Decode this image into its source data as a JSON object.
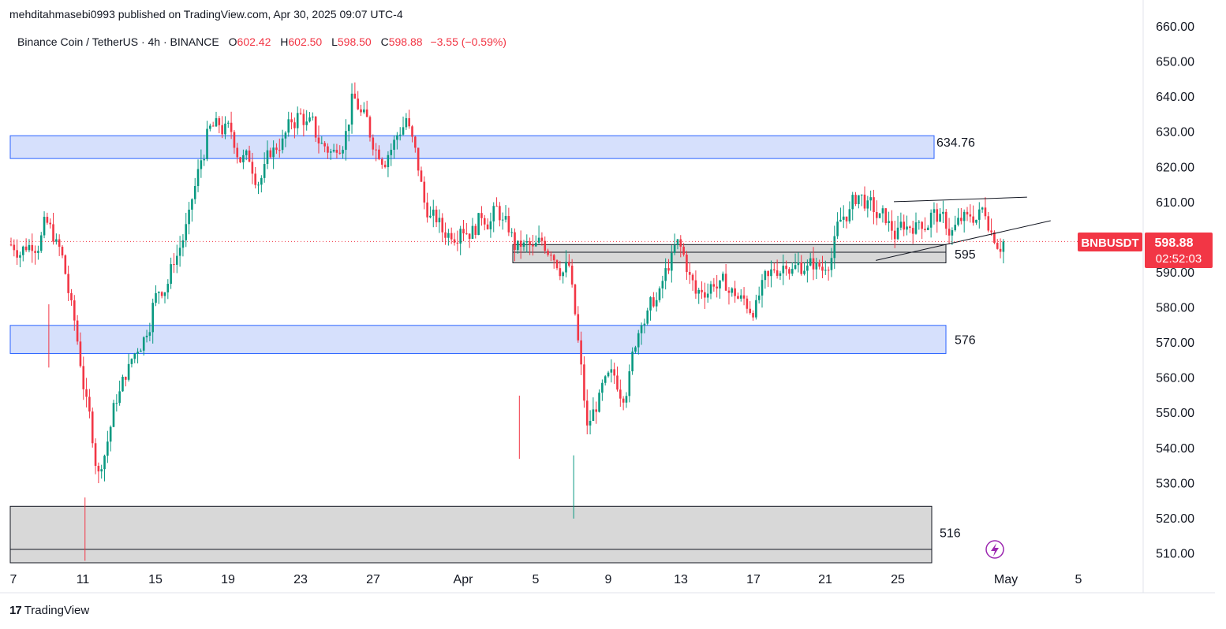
{
  "header": {
    "published": "mehditahmasebi0993 published on TradingView.com, Apr 30, 2025 09:07 UTC-4"
  },
  "legend": {
    "symbol": "Binance Coin / TetherUS · 4h · BINANCE",
    "o_label": "O",
    "o_value": "602.42",
    "h_label": "H",
    "h_value": "602.50",
    "l_label": "L",
    "l_value": "598.50",
    "c_label": "C",
    "c_value": "598.88",
    "change": "−3.55 (−0.59%)"
  },
  "colors": {
    "up": "#089981",
    "down": "#f23645",
    "zone_blue_fill": "#d1ddfc",
    "zone_blue_stroke": "#2962ff",
    "zone_gray_fill": "#d6d6d6",
    "zone_gray_stroke": "#131722",
    "price_tag": "#f23645"
  },
  "price_tag": {
    "symbol": "BNBUSDT",
    "price": "598.88",
    "countdown": "02:52:03"
  },
  "footer": {
    "brand": "TradingView"
  },
  "chart_data": {
    "type": "candlestick",
    "title": "",
    "ylim": [
      507,
      662
    ],
    "y_ticks": [
      "660.00",
      "650.00",
      "640.00",
      "630.00",
      "620.00",
      "610.00",
      "600.00",
      "590.00",
      "580.00",
      "570.00",
      "560.00",
      "550.00",
      "540.00",
      "530.00",
      "520.00",
      "510.00"
    ],
    "x_ticks": [
      "7",
      "11",
      "15",
      "19",
      "23",
      "27",
      "Apr",
      "5",
      "9",
      "13",
      "17",
      "21",
      "25",
      "May",
      "5"
    ],
    "current_price": 598.88,
    "zones": [
      {
        "label": "634.76",
        "top": 629.0,
        "bottom": 622.5,
        "style": "blue"
      },
      {
        "label": "595",
        "top": 598.0,
        "bottom": 592.8,
        "style": "gray"
      },
      {
        "label": "576",
        "top": 575.0,
        "bottom": 567.0,
        "style": "blue"
      },
      {
        "label": "516",
        "top": 523.5,
        "bottom": 499.0,
        "style": "gray"
      }
    ],
    "trendlines": [
      {
        "from": [
          "Apr 25",
          610.2
        ],
        "to": [
          "Apr 29",
          611.5
        ]
      },
      {
        "from": [
          "Apr 24",
          593.5
        ],
        "to": [
          "Apr 30",
          604.8
        ]
      }
    ],
    "series": [
      {
        "date": "Mar 7",
        "close": 598
      },
      {
        "date": "Mar 8",
        "close": 603
      },
      {
        "date": "Mar 9",
        "close": 594
      },
      {
        "date": "Mar 10",
        "close": 565
      },
      {
        "date": "Mar 11",
        "close": 532
      },
      {
        "date": "Mar 12",
        "close": 555
      },
      {
        "date": "Mar 13",
        "close": 567
      },
      {
        "date": "Mar 14",
        "close": 580
      },
      {
        "date": "Mar 15",
        "close": 590
      },
      {
        "date": "Mar 16",
        "close": 605
      },
      {
        "date": "Mar 17",
        "close": 628
      },
      {
        "date": "Mar 18",
        "close": 630
      },
      {
        "date": "Mar 19",
        "close": 622
      },
      {
        "date": "Mar 20",
        "close": 617
      },
      {
        "date": "Mar 21",
        "close": 627
      },
      {
        "date": "Mar 22",
        "close": 634
      },
      {
        "date": "Mar 23",
        "close": 630
      },
      {
        "date": "Mar 24",
        "close": 624
      },
      {
        "date": "Mar 25",
        "close": 638
      },
      {
        "date": "Mar 26",
        "close": 630
      },
      {
        "date": "Mar 27",
        "close": 624
      },
      {
        "date": "Mar 28",
        "close": 634
      },
      {
        "date": "Mar 29",
        "close": 610
      },
      {
        "date": "Mar 30",
        "close": 602
      },
      {
        "date": "Mar 31",
        "close": 604
      },
      {
        "date": "Apr 1",
        "close": 604
      },
      {
        "date": "Apr 2",
        "close": 608
      },
      {
        "date": "Apr 3",
        "close": 598
      },
      {
        "date": "Apr 4",
        "close": 596
      },
      {
        "date": "Apr 5",
        "close": 597
      },
      {
        "date": "Apr 6",
        "close": 592
      },
      {
        "date": "Apr 7",
        "close": 545
      },
      {
        "date": "Apr 8",
        "close": 558
      },
      {
        "date": "Apr 9",
        "close": 556
      },
      {
        "date": "Apr 10",
        "close": 578
      },
      {
        "date": "Apr 11",
        "close": 583
      },
      {
        "date": "Apr 12",
        "close": 598
      },
      {
        "date": "Apr 13",
        "close": 584
      },
      {
        "date": "Apr 14",
        "close": 588
      },
      {
        "date": "Apr 15",
        "close": 584
      },
      {
        "date": "Apr 16",
        "close": 580
      },
      {
        "date": "Apr 17",
        "close": 588
      },
      {
        "date": "Apr 18",
        "close": 594
      },
      {
        "date": "Apr 19",
        "close": 592
      },
      {
        "date": "Apr 20",
        "close": 591
      },
      {
        "date": "Apr 21",
        "close": 605
      },
      {
        "date": "Apr 22",
        "close": 612
      },
      {
        "date": "Apr 23",
        "close": 606
      },
      {
        "date": "Apr 24",
        "close": 601
      },
      {
        "date": "Apr 25",
        "close": 604
      },
      {
        "date": "Apr 26",
        "close": 606
      },
      {
        "date": "Apr 27",
        "close": 602
      },
      {
        "date": "Apr 28",
        "close": 605
      },
      {
        "date": "Apr 29",
        "close": 608
      },
      {
        "date": "Apr 30",
        "close": 598.88
      }
    ]
  }
}
